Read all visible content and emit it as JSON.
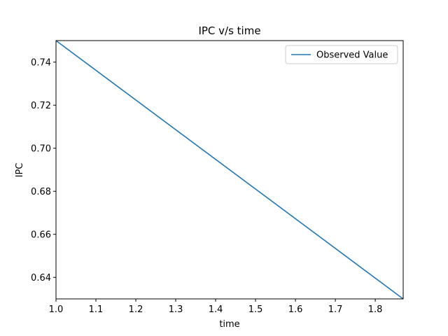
{
  "chart_data": {
    "type": "line",
    "title": "IPC v/s time",
    "xlabel": "time",
    "ylabel": "IPC",
    "xlim": [
      1.0,
      1.87
    ],
    "ylim": [
      0.63,
      0.75
    ],
    "xticks": [
      "1.0",
      "1.1",
      "1.2",
      "1.3",
      "1.4",
      "1.5",
      "1.6",
      "1.7",
      "1.8"
    ],
    "yticks": [
      "0.64",
      "0.66",
      "0.68",
      "0.70",
      "0.72",
      "0.74"
    ],
    "grid": false,
    "legend_position": "top-right",
    "series": [
      {
        "name": "Observed Value",
        "color": "#1f77b4",
        "x": [
          1.0,
          1.87
        ],
        "y": [
          0.75,
          0.63
        ]
      }
    ]
  }
}
